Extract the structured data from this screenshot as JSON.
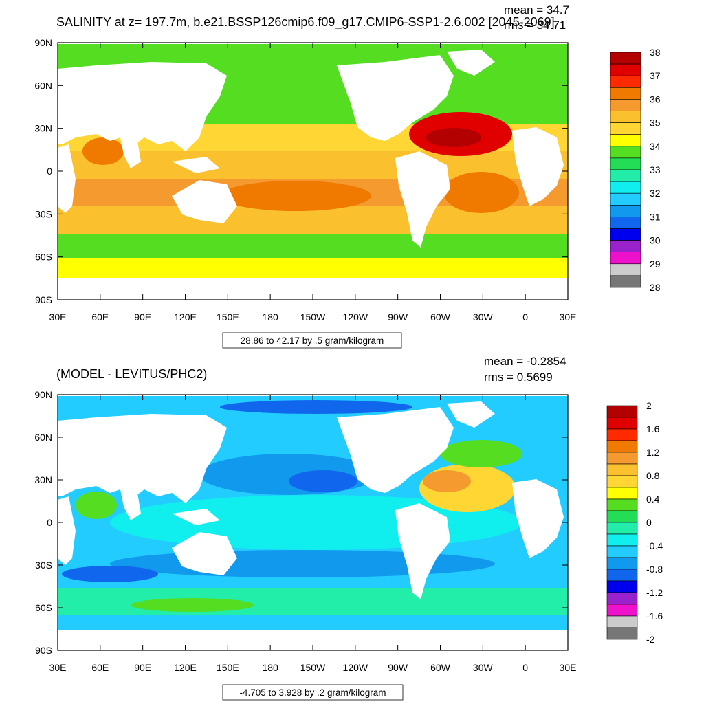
{
  "panel_top": {
    "title": "SALINITY at z= 197.7m, b.e21.BSSP126cmip6.f09_g17.CMIP6-SSP1-2.6.002 [2045-2069]",
    "mean": "mean = 34.7",
    "rms": "rms = 34.71",
    "range_label": "28.86 to 42.17 by .5 gram/kilogram",
    "lat_ticks": [
      "90N",
      "60N",
      "30N",
      "0",
      "30S",
      "60S",
      "90S"
    ],
    "lon_ticks": [
      "30E",
      "60E",
      "90E",
      "120E",
      "150E",
      "180",
      "150W",
      "120W",
      "90W",
      "60W",
      "30W",
      "0",
      "30E"
    ],
    "colorbar": {
      "labels": [
        "38",
        "37",
        "36",
        "35",
        "34",
        "33",
        "32",
        "31",
        "30",
        "29",
        "28"
      ],
      "colors": [
        "#b30000",
        "#e00000",
        "#ff2a00",
        "#f07a00",
        "#f59a2e",
        "#fbc02d",
        "#ffd633",
        "#ffff00",
        "#55dd22",
        "#22dd55",
        "#22eeaa",
        "#11eeee",
        "#22ccff",
        "#1199ee",
        "#1166ee",
        "#0000ee",
        "#9922cc",
        "#ee11cc",
        "#cccccc",
        "#777777"
      ]
    }
  },
  "panel_bottom": {
    "title": "(MODEL - LEVITUS/PHC2)",
    "mean": "mean = -0.2854",
    "rms": "rms = 0.5699",
    "range_label": "-4.705 to 3.928 by .2 gram/kilogram",
    "lat_ticks": [
      "90N",
      "60N",
      "30N",
      "0",
      "30S",
      "60S",
      "90S"
    ],
    "lon_ticks": [
      "30E",
      "60E",
      "90E",
      "120E",
      "150E",
      "180",
      "150W",
      "120W",
      "90W",
      "60W",
      "30W",
      "0",
      "30E"
    ],
    "colorbar": {
      "labels": [
        "2",
        "1.6",
        "1.2",
        "0.8",
        "0.4",
        "0",
        "-0.4",
        "-0.8",
        "-1.2",
        "-1.6",
        "-2"
      ],
      "colors": [
        "#b30000",
        "#e00000",
        "#ff2a00",
        "#f07a00",
        "#f59a2e",
        "#fbc02d",
        "#ffd633",
        "#ffff00",
        "#55dd22",
        "#22dd55",
        "#22eeaa",
        "#11eeee",
        "#22ccff",
        "#1199ee",
        "#1166ee",
        "#0000ee",
        "#9922cc",
        "#ee11cc",
        "#cccccc",
        "#777777"
      ]
    }
  }
}
